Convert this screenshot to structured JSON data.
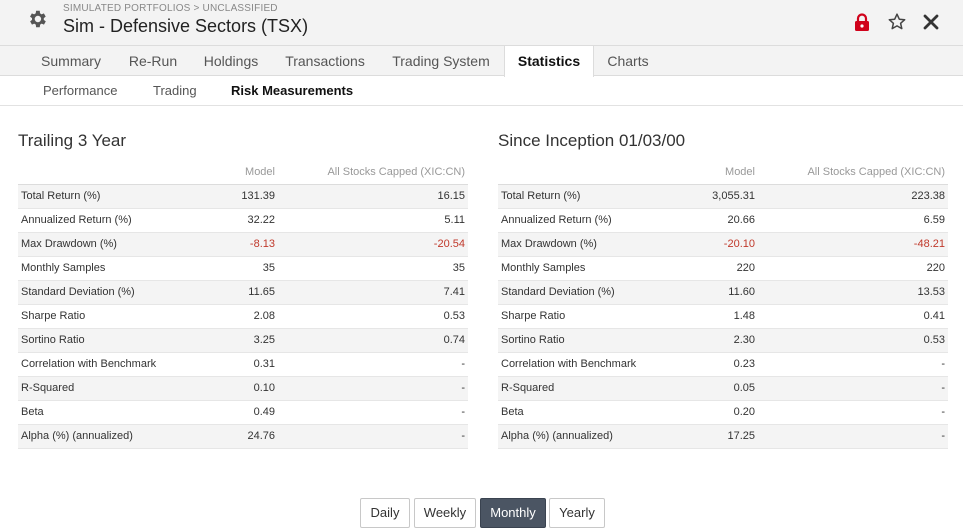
{
  "header": {
    "breadcrumb": "SIMULATED PORTFOLIOS > UNCLASSIFIED",
    "title": "Sim - Defensive Sectors (TSX)"
  },
  "tabs": [
    "Summary",
    "Re-Run",
    "Holdings",
    "Transactions",
    "Trading System",
    "Statistics",
    "Charts"
  ],
  "active_tab": "Statistics",
  "subtabs": [
    "Performance",
    "Trading",
    "Risk Measurements"
  ],
  "active_subtab": "Risk Measurements",
  "colors": {
    "negative": "#c0392b",
    "lock": "#d0021b",
    "active_button": "#4b5563"
  },
  "panels": [
    {
      "title": "Trailing 3 Year",
      "col_model": "Model",
      "col_bench": "All Stocks Capped (XIC:CN)",
      "rows": [
        {
          "label": "Total Return (%)",
          "model": "131.39",
          "bench": "16.15"
        },
        {
          "label": "Annualized Return (%)",
          "model": "32.22",
          "bench": "5.11"
        },
        {
          "label": "Max Drawdown (%)",
          "model": "-8.13",
          "bench": "-20.54"
        },
        {
          "label": "Monthly Samples",
          "model": "35",
          "bench": "35"
        },
        {
          "label": "Standard Deviation (%)",
          "model": "11.65",
          "bench": "7.41"
        },
        {
          "label": "Sharpe Ratio",
          "model": "2.08",
          "bench": "0.53"
        },
        {
          "label": "Sortino Ratio",
          "model": "3.25",
          "bench": "0.74"
        },
        {
          "label": "Correlation with Benchmark",
          "model": "0.31",
          "bench": "-"
        },
        {
          "label": "R-Squared",
          "model": "0.10",
          "bench": "-"
        },
        {
          "label": "Beta",
          "model": "0.49",
          "bench": "-"
        },
        {
          "label": "Alpha (%) (annualized)",
          "model": "24.76",
          "bench": "-"
        }
      ]
    },
    {
      "title": "Since Inception 01/03/00",
      "col_model": "Model",
      "col_bench": "All Stocks Capped (XIC:CN)",
      "rows": [
        {
          "label": "Total Return (%)",
          "model": "3,055.31",
          "bench": "223.38"
        },
        {
          "label": "Annualized Return (%)",
          "model": "20.66",
          "bench": "6.59"
        },
        {
          "label": "Max Drawdown (%)",
          "model": "-20.10",
          "bench": "-48.21"
        },
        {
          "label": "Monthly Samples",
          "model": "220",
          "bench": "220"
        },
        {
          "label": "Standard Deviation (%)",
          "model": "11.60",
          "bench": "13.53"
        },
        {
          "label": "Sharpe Ratio",
          "model": "1.48",
          "bench": "0.41"
        },
        {
          "label": "Sortino Ratio",
          "model": "2.30",
          "bench": "0.53"
        },
        {
          "label": "Correlation with Benchmark",
          "model": "0.23",
          "bench": "-"
        },
        {
          "label": "R-Squared",
          "model": "0.05",
          "bench": "-"
        },
        {
          "label": "Beta",
          "model": "0.20",
          "bench": "-"
        },
        {
          "label": "Alpha (%) (annualized)",
          "model": "17.25",
          "bench": "-"
        }
      ]
    }
  ],
  "period_buttons": [
    "Daily",
    "Weekly",
    "Monthly",
    "Yearly"
  ],
  "active_period": "Monthly"
}
